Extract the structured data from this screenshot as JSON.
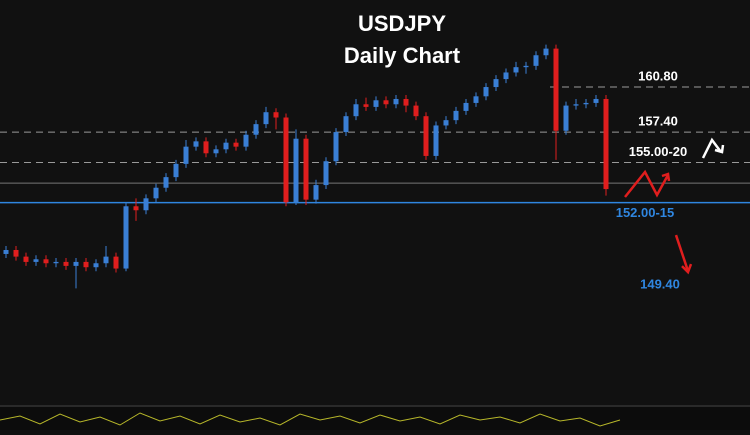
{
  "chart_data": {
    "type": "candlestick",
    "title": "USDJPY",
    "subtitle": "Daily Chart",
    "ylim": [
      136.8,
      167.37
    ],
    "up_color": "#3a7fd5",
    "down_color": "#e01e1e",
    "open": [
      148.2,
      148.5,
      148.0,
      147.6,
      147.8,
      147.5,
      147.6,
      147.3,
      147.6,
      147.2,
      147.5,
      148.0,
      147.1,
      151.8,
      151.5,
      152.4,
      153.2,
      154.0,
      155.0,
      156.3,
      156.7,
      155.8,
      156.1,
      156.6,
      156.3,
      157.2,
      158.0,
      158.9,
      158.5,
      152.1,
      156.9,
      152.3,
      153.4,
      155.2,
      157.4,
      158.6,
      159.5,
      159.3,
      159.8,
      159.5,
      159.9,
      159.4,
      158.6,
      155.6,
      157.9,
      158.3,
      159.0,
      159.6,
      160.1,
      160.8,
      161.4,
      161.9,
      162.3,
      162.4,
      163.2,
      163.7,
      157.5,
      159.4,
      159.5,
      159.6,
      159.9
    ],
    "high": [
      148.8,
      148.8,
      148.3,
      148.1,
      148.1,
      147.9,
      147.9,
      147.9,
      147.9,
      147.8,
      148.8,
      148.3,
      152.1,
      152.4,
      152.7,
      153.5,
      154.3,
      155.3,
      156.8,
      157.0,
      157.0,
      156.4,
      156.9,
      156.9,
      157.5,
      158.3,
      159.3,
      159.2,
      158.8,
      157.6,
      157.2,
      153.8,
      155.5,
      157.7,
      158.9,
      159.9,
      160.0,
      160.1,
      160.1,
      160.2,
      160.2,
      159.7,
      158.9,
      158.2,
      158.6,
      159.3,
      159.9,
      160.4,
      161.1,
      161.7,
      162.2,
      162.7,
      162.7,
      163.5,
      164.0,
      164.0,
      159.7,
      159.9,
      159.9,
      160.2,
      160.2
    ],
    "low": [
      147.9,
      147.7,
      147.3,
      147.3,
      147.2,
      147.2,
      147.0,
      145.6,
      146.9,
      146.9,
      147.2,
      146.8,
      146.9,
      150.7,
      151.2,
      152.1,
      152.9,
      153.7,
      154.7,
      156.0,
      155.5,
      155.5,
      155.8,
      156.0,
      156.0,
      156.9,
      157.7,
      157.6,
      151.8,
      151.9,
      151.9,
      152.0,
      153.1,
      154.9,
      157.1,
      158.3,
      159.0,
      159.0,
      159.2,
      159.2,
      158.9,
      158.3,
      155.3,
      155.3,
      157.6,
      158.0,
      158.7,
      159.3,
      159.8,
      160.5,
      161.1,
      161.6,
      161.8,
      162.1,
      162.9,
      155.3,
      157.2,
      159.1,
      159.2,
      159.3,
      152.6
    ],
    "close": [
      148.5,
      148.0,
      147.6,
      147.8,
      147.5,
      147.6,
      147.3,
      147.6,
      147.2,
      147.5,
      148.0,
      147.1,
      151.8,
      151.5,
      152.4,
      153.2,
      154.0,
      155.0,
      156.3,
      156.7,
      155.8,
      156.1,
      156.6,
      156.3,
      157.2,
      158.0,
      158.9,
      158.5,
      152.1,
      156.9,
      152.3,
      153.4,
      155.2,
      157.4,
      158.6,
      159.5,
      159.3,
      159.8,
      159.5,
      159.9,
      159.4,
      158.6,
      155.6,
      157.9,
      158.3,
      159.0,
      159.6,
      160.1,
      160.8,
      161.4,
      161.9,
      162.3,
      162.4,
      163.2,
      163.7,
      157.5,
      159.4,
      159.5,
      159.6,
      159.9,
      153.1
    ],
    "levels": [
      {
        "value": 160.8,
        "label": "160.80",
        "color": "#9a9a9a",
        "style": "dashed"
      },
      {
        "value": 157.4,
        "label": "157.40",
        "color": "#9a9a9a",
        "style": "dashed"
      },
      {
        "value": 155.1,
        "label": "155.00-20",
        "color": "#9a9a9a",
        "style": "dashed"
      },
      {
        "value": 152.075,
        "label": "152.00-15",
        "color": "#2f86e0",
        "style": "solid"
      }
    ],
    "support_line": 153.55,
    "target": {
      "value": 149.4,
      "label": "149.40"
    }
  }
}
